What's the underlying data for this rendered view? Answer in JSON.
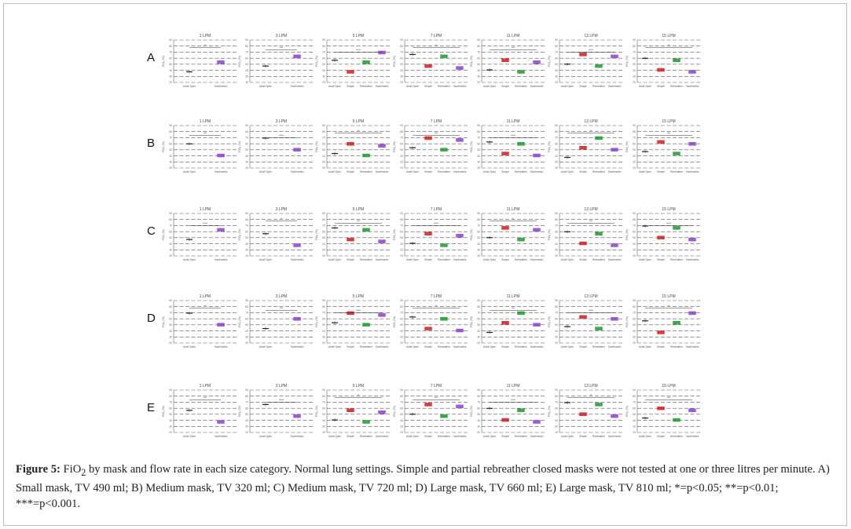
{
  "figure": {
    "rows": [
      {
        "label": "A",
        "titles": [
          "1 LPM",
          "3 LPM",
          "5 LPM",
          "7 LPM",
          "11 LPM",
          "13 LPM",
          "15 LPM"
        ]
      },
      {
        "label": "B",
        "titles": [
          "1 LPM",
          "3 LPM",
          "5 LPM",
          "7 LPM",
          "11 LPM",
          "13 LPM",
          "15 LPM"
        ]
      },
      {
        "label": "C",
        "titles": [
          "1 LPM",
          "3 LPM",
          "5 LPM",
          "7 LPM",
          "11 LPM",
          "13 LPM",
          "15 LPM"
        ]
      },
      {
        "label": "D",
        "titles": [
          "1 LPM",
          "3 LPM",
          "5 LPM",
          "7 LPM",
          "11 LPM",
          "13 LPM",
          "15 LPM"
        ]
      },
      {
        "label": "E",
        "titles": [
          "1 LPM",
          "3 LPM",
          "5 LPM",
          "7 LPM",
          "11 LPM",
          "13 LPM",
          "15 LPM"
        ]
      }
    ],
    "ylabel": "FiO₂ (%)",
    "yticks": [
      "20",
      "30",
      "40",
      "50",
      "60",
      "70",
      "80",
      "90"
    ],
    "categories_two": [
      "Adult Open",
      "Southmedic"
    ],
    "categories_four": [
      "Adult Open",
      "Simple",
      "Rebreather",
      "Southmedic"
    ],
    "colors": {
      "Adult Open": "#222222",
      "Simple": "#d11a1a",
      "Rebreather": "#1a9a2a",
      "Southmedic": "#8a3fd1"
    },
    "sig_labels": [
      "*",
      "**",
      "***"
    ]
  },
  "caption": {
    "label": "Figure 5:",
    "fio": "FiO",
    "sub": "2",
    "text": " by mask and flow rate in each size category. Normal lung settings. Simple and partial rebreather closed masks were not tested at one or three litres per minute. A) Small mask, TV 490 ml; B) Medium mask, TV 320 ml; C) Medium mask, TV 720 ml; D) Large mask, TV 660 ml; E) Large mask, TV 810 ml; *=p<0.05; **=p<0.01; ***=p<0.001."
  }
}
